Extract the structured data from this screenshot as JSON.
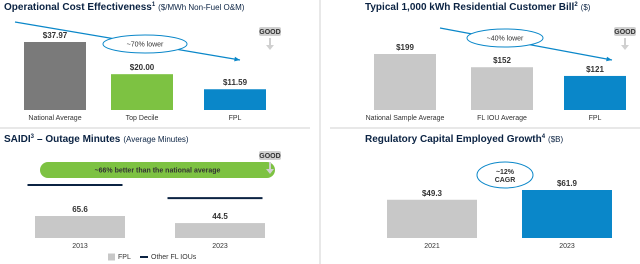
{
  "chart_data": [
    {
      "type": "bar",
      "title": "Operational Cost Effectiveness",
      "title_sup": "1",
      "subtitle": "($/MWh Non-Fuel O&M)",
      "categories": [
        "National Average",
        "Top Decile",
        "FPL"
      ],
      "values": [
        37.97,
        20.0,
        11.59
      ],
      "value_labels": [
        "$37.97",
        "$20.00",
        "$11.59"
      ],
      "colors": [
        "#7a7a7a",
        "#7dc242",
        "#0a87c9"
      ],
      "annotation": "~70% lower",
      "good_label": "GOOD"
    },
    {
      "type": "bar",
      "title": "Typical 1,000 kWh Residential Customer Bill",
      "title_sup": "2",
      "subtitle": "($)",
      "categories": [
        "National Sample Average",
        "FL IOU Average",
        "FPL"
      ],
      "values": [
        199,
        152,
        121
      ],
      "value_labels": [
        "$199",
        "$152",
        "$121"
      ],
      "colors": [
        "#c8c8c8",
        "#c8c8c8",
        "#0a87c9"
      ],
      "annotation": "~40% lower",
      "good_label": "GOOD"
    },
    {
      "type": "bar",
      "title": "SAIDI",
      "title_sup": "3",
      "title_rest": "– Outage Minutes",
      "subtitle": "(Average Minutes)",
      "categories": [
        "2013",
        "2023"
      ],
      "series": [
        {
          "name": "FPL",
          "color": "#c8c8c8",
          "values": [
            65.6,
            44.5
          ]
        },
        {
          "name": "Other FL IOUs",
          "color": "#0b2343",
          "values": [
            158,
            119
          ]
        }
      ],
      "annotation": "~66% better than the national average",
      "banner_color": "#7dc242",
      "good_label": "GOOD"
    },
    {
      "type": "bar",
      "title": "Regulatory Capital Employed Growth",
      "title_sup": "4",
      "subtitle": "($B)",
      "categories": [
        "2021",
        "2023"
      ],
      "values": [
        49.3,
        61.9
      ],
      "value_labels": [
        "$49.3",
        "$61.9"
      ],
      "colors": [
        "#c8c8c8",
        "#0a87c9"
      ],
      "annotation": [
        "~12%",
        "CAGR"
      ]
    }
  ]
}
